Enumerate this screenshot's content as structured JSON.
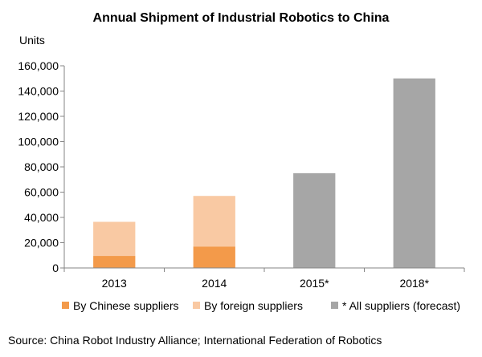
{
  "chart_data": {
    "type": "bar",
    "stacked": true,
    "title": "Annual Shipment of Industrial Robotics to China",
    "ylabel": "Units",
    "xlabel": "",
    "categories": [
      "2013",
      "2014",
      "2015*",
      "2018*"
    ],
    "series": [
      {
        "name": "By Chinese suppliers",
        "values": [
          9500,
          17000,
          null,
          null
        ],
        "color": "#F39A4A"
      },
      {
        "name": "By foreign suppliers",
        "values": [
          27000,
          40000,
          null,
          null
        ],
        "color": "#F9C9A3"
      },
      {
        "name": "* All suppliers (forecast)",
        "values": [
          null,
          null,
          75000,
          150000
        ],
        "color": "#A6A6A6"
      }
    ],
    "ylim": [
      0,
      160000
    ],
    "yticks": [
      "0",
      "20,000",
      "40,000",
      "60,000",
      "80,000",
      "100,000",
      "120,000",
      "140,000",
      "160,000"
    ],
    "grid": false,
    "legend_position": "bottom"
  },
  "source_text": "Source: China Robot Industry Alliance; International Federation of Robotics"
}
